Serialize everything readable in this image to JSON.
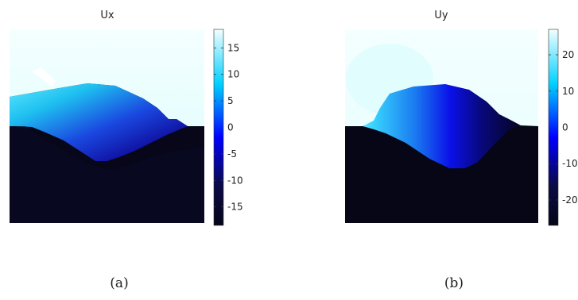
{
  "chart_data": [
    {
      "type": "heatmap",
      "title": "Ux",
      "caption": "(a)",
      "colorbar": {
        "ticks": [
          15,
          10,
          5,
          0,
          -5,
          -10,
          -15
        ],
        "range": [
          -18.5,
          18.5
        ],
        "colormap": [
          "#050519",
          "#0a0a45",
          "#0000ff",
          "#00d0ff",
          "#f2ffff"
        ]
      }
    },
    {
      "type": "heatmap",
      "title": "Uy",
      "caption": "(b)",
      "colorbar": {
        "ticks": [
          20,
          10,
          0,
          -10,
          -20
        ],
        "range": [
          -27,
          27
        ],
        "colormap": [
          "#050519",
          "#0a0a45",
          "#0000ff",
          "#00d0ff",
          "#f2ffff"
        ]
      }
    }
  ]
}
